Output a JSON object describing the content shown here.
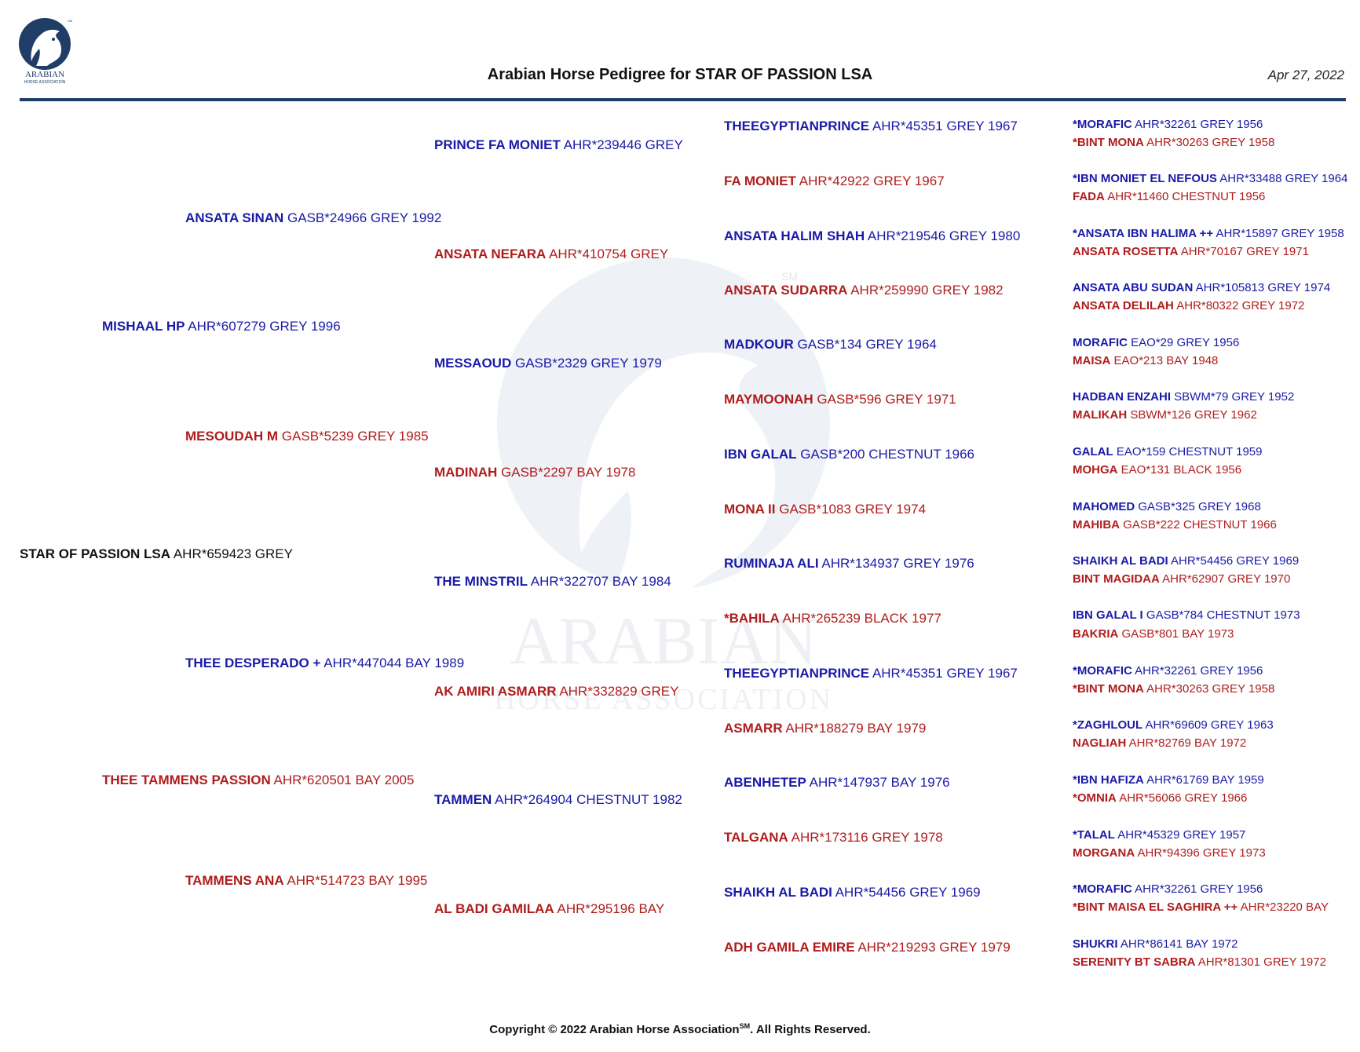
{
  "header": {
    "logo_text": "ARABIAN",
    "logo_subtext": "HORSE ASSOCIATION",
    "logo_mark": "SM",
    "title": "Arabian Horse Pedigree for STAR OF PASSION LSA",
    "date": "Apr 27, 2022"
  },
  "watermark": {
    "text": "ARABIAN",
    "subtext": "HORSE ASSOCIATION",
    "mark": "SM"
  },
  "colors": {
    "male": "#1a1aa8",
    "female": "#b01c1c",
    "rule": "#1f3d66"
  },
  "subject": {
    "name": "STAR OF PASSION LSA",
    "info": "AHR*659423 GREY"
  },
  "generation_1": [
    {
      "name": "MISHAAL HP",
      "info": "AHR*607279 GREY 1996",
      "sex": "male"
    },
    {
      "name": "THEE TAMMENS PASSION",
      "info": "AHR*620501 BAY 2005",
      "sex": "female"
    }
  ],
  "generation_2": [
    {
      "name": "ANSATA SINAN",
      "info": "GASB*24966 GREY 1992",
      "sex": "male"
    },
    {
      "name": "MESOUDAH M",
      "info": "GASB*5239 GREY 1985",
      "sex": "female"
    },
    {
      "name": "THEE DESPERADO +",
      "info": "AHR*447044 BAY 1989",
      "sex": "male"
    },
    {
      "name": "TAMMENS ANA",
      "info": "AHR*514723 BAY 1995",
      "sex": "female"
    }
  ],
  "generation_3": [
    {
      "name": "PRINCE FA MONIET",
      "info": "AHR*239446 GREY",
      "sex": "male"
    },
    {
      "name": "ANSATA NEFARA",
      "info": "AHR*410754 GREY",
      "sex": "female"
    },
    {
      "name": "MESSAOUD",
      "info": "GASB*2329 GREY 1979",
      "sex": "male"
    },
    {
      "name": "MADINAH",
      "info": "GASB*2297 BAY 1978",
      "sex": "female"
    },
    {
      "name": "THE MINSTRIL",
      "info": "AHR*322707 BAY 1984",
      "sex": "male"
    },
    {
      "name": "AK AMIRI ASMARR",
      "info": "AHR*332829 GREY",
      "sex": "female"
    },
    {
      "name": "TAMMEN",
      "info": "AHR*264904 CHESTNUT 1982",
      "sex": "male"
    },
    {
      "name": "AL BADI GAMILAA",
      "info": "AHR*295196 BAY",
      "sex": "female"
    }
  ],
  "generation_4": [
    {
      "name": "THEEGYPTIANPRINCE",
      "info": "AHR*45351 GREY 1967",
      "sex": "male"
    },
    {
      "name": "FA MONIET",
      "info": "AHR*42922 GREY 1967",
      "sex": "female"
    },
    {
      "name": "ANSATA HALIM SHAH",
      "info": "AHR*219546 GREY 1980",
      "sex": "male"
    },
    {
      "name": "ANSATA SUDARRA",
      "info": "AHR*259990 GREY 1982",
      "sex": "female"
    },
    {
      "name": "MADKOUR",
      "info": "GASB*134 GREY 1964",
      "sex": "male"
    },
    {
      "name": "MAYMOONAH",
      "info": "GASB*596 GREY 1971",
      "sex": "female"
    },
    {
      "name": "IBN GALAL",
      "info": "GASB*200 CHESTNUT 1966",
      "sex": "male"
    },
    {
      "name": "MONA II",
      "info": "GASB*1083 GREY 1974",
      "sex": "female"
    },
    {
      "name": "RUMINAJA ALI",
      "info": "AHR*134937 GREY 1976",
      "sex": "male"
    },
    {
      "name": "*BAHILA",
      "info": "AHR*265239 BLACK 1977",
      "sex": "female"
    },
    {
      "name": "THEEGYPTIANPRINCE",
      "info": "AHR*45351 GREY 1967",
      "sex": "male"
    },
    {
      "name": "ASMARR",
      "info": "AHR*188279 BAY 1979",
      "sex": "female"
    },
    {
      "name": "ABENHETEP",
      "info": "AHR*147937 BAY 1976",
      "sex": "male"
    },
    {
      "name": "TALGANA",
      "info": "AHR*173116 GREY 1978",
      "sex": "female"
    },
    {
      "name": "SHAIKH AL BADI",
      "info": "AHR*54456 GREY 1969",
      "sex": "male"
    },
    {
      "name": "ADH GAMILA EMIRE",
      "info": "AHR*219293 GREY 1979",
      "sex": "female"
    }
  ],
  "generation_5": [
    {
      "name": "*MORAFIC",
      "info": "AHR*32261 GREY 1956",
      "sex": "male"
    },
    {
      "name": "*BINT MONA",
      "info": "AHR*30263 GREY 1958",
      "sex": "female"
    },
    {
      "name": "*IBN MONIET EL NEFOUS",
      "info": "AHR*33488 GREY 1964",
      "sex": "male"
    },
    {
      "name": "FADA",
      "info": "AHR*11460 CHESTNUT 1956",
      "sex": "female"
    },
    {
      "name": "*ANSATA IBN HALIMA ++",
      "info": "AHR*15897 GREY 1958",
      "sex": "male"
    },
    {
      "name": "ANSATA ROSETTA",
      "info": "AHR*70167 GREY 1971",
      "sex": "female"
    },
    {
      "name": "ANSATA ABU SUDAN",
      "info": "AHR*105813 GREY 1974",
      "sex": "male"
    },
    {
      "name": "ANSATA DELILAH",
      "info": "AHR*80322 GREY 1972",
      "sex": "female"
    },
    {
      "name": "MORAFIC",
      "info": "EAO*29 GREY 1956",
      "sex": "male"
    },
    {
      "name": "MAISA",
      "info": "EAO*213 BAY 1948",
      "sex": "female"
    },
    {
      "name": "HADBAN ENZAHI",
      "info": "SBWM*79 GREY 1952",
      "sex": "male"
    },
    {
      "name": "MALIKAH",
      "info": "SBWM*126 GREY 1962",
      "sex": "female"
    },
    {
      "name": "GALAL",
      "info": "EAO*159 CHESTNUT 1959",
      "sex": "male"
    },
    {
      "name": "MOHGA",
      "info": "EAO*131 BLACK 1956",
      "sex": "female"
    },
    {
      "name": "MAHOMED",
      "info": "GASB*325 GREY 1968",
      "sex": "male"
    },
    {
      "name": "MAHIBA",
      "info": "GASB*222 CHESTNUT 1966",
      "sex": "female"
    },
    {
      "name": "SHAIKH AL BADI",
      "info": "AHR*54456 GREY 1969",
      "sex": "male"
    },
    {
      "name": "BINT MAGIDAA",
      "info": "AHR*62907 GREY 1970",
      "sex": "female"
    },
    {
      "name": "IBN GALAL I",
      "info": "GASB*784 CHESTNUT 1973",
      "sex": "male"
    },
    {
      "name": "BAKRIA",
      "info": "GASB*801 BAY 1973",
      "sex": "female"
    },
    {
      "name": "*MORAFIC",
      "info": "AHR*32261 GREY 1956",
      "sex": "male"
    },
    {
      "name": "*BINT MONA",
      "info": "AHR*30263 GREY 1958",
      "sex": "female"
    },
    {
      "name": "*ZAGHLOUL",
      "info": "AHR*69609 GREY 1963",
      "sex": "male"
    },
    {
      "name": "NAGLIAH",
      "info": "AHR*82769 BAY 1972",
      "sex": "female"
    },
    {
      "name": "*IBN HAFIZA",
      "info": "AHR*61769 BAY 1959",
      "sex": "male"
    },
    {
      "name": "*OMNIA",
      "info": "AHR*56066 GREY 1966",
      "sex": "female"
    },
    {
      "name": "*TALAL",
      "info": "AHR*45329 GREY 1957",
      "sex": "male"
    },
    {
      "name": "MORGANA",
      "info": "AHR*94396 GREY 1973",
      "sex": "female"
    },
    {
      "name": "*MORAFIC",
      "info": "AHR*32261 GREY 1956",
      "sex": "male"
    },
    {
      "name": "*BINT MAISA EL SAGHIRA ++",
      "info": "AHR*23220 BAY",
      "sex": "female"
    },
    {
      "name": "SHUKRI",
      "info": "AHR*86141 BAY 1972",
      "sex": "male"
    },
    {
      "name": "SERENITY BT SABRA",
      "info": "AHR*81301 GREY 1972",
      "sex": "female"
    }
  ],
  "footer": {
    "copyright_text": "Copyright © 2022 Arabian Horse Association",
    "copyright_mark": "SM",
    "copyright_suffix": ".  All Rights Reserved."
  }
}
